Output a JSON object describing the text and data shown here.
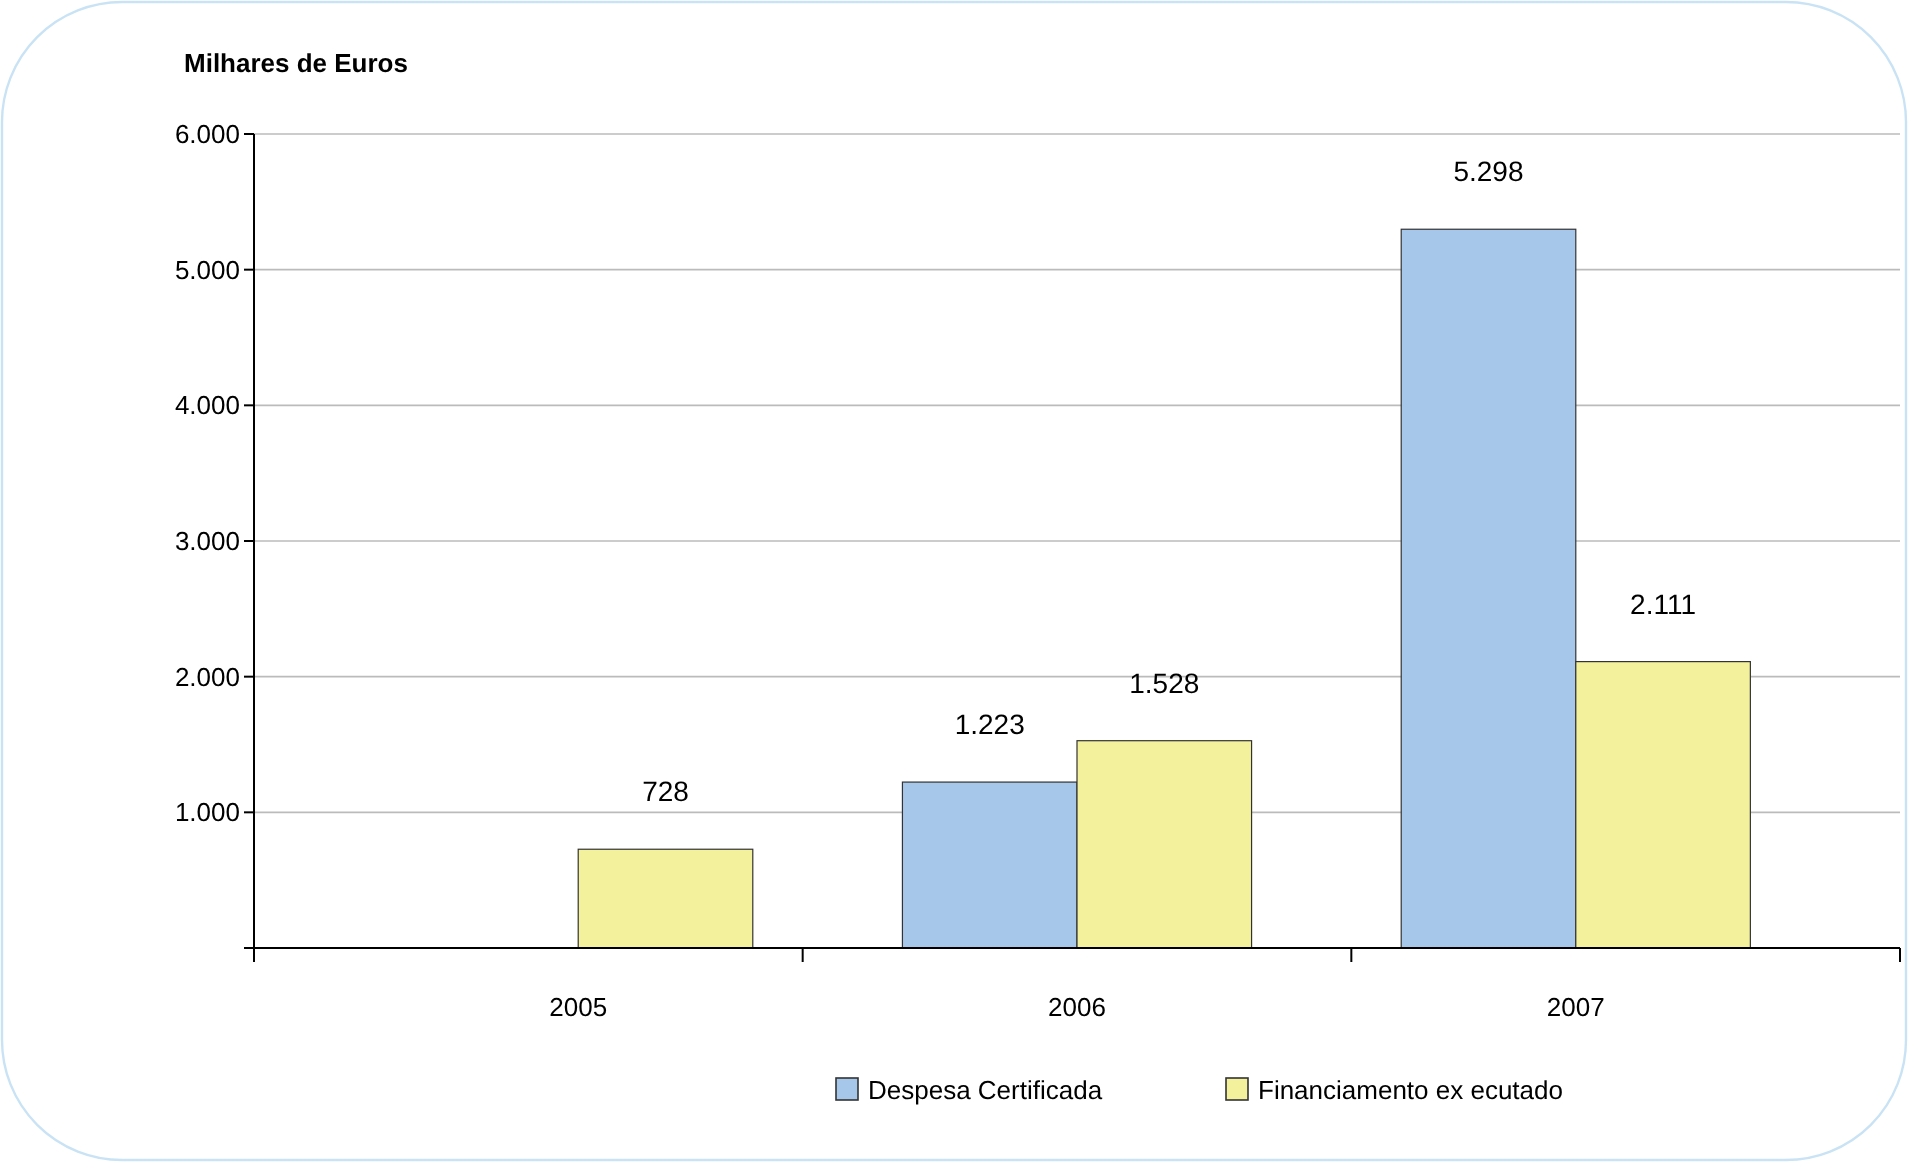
{
  "chart_data": {
    "type": "bar",
    "ylabel": "Milhares de Euros",
    "categories": [
      "2005",
      "2006",
      "2007"
    ],
    "series": [
      {
        "name": "Despesa Certificada",
        "color": "#a6c6ea",
        "values": [
          null,
          1223,
          5298
        ],
        "value_labels": [
          null,
          "1.223",
          "5.298"
        ]
      },
      {
        "name": "Financiamento ex ecutado",
        "color": "#f4f19c",
        "values": [
          728,
          1528,
          2111
        ],
        "value_labels": [
          "728",
          "1.528",
          "2.111"
        ]
      }
    ],
    "ylim": [
      0,
      6000
    ],
    "yticks": [
      {
        "value": 0,
        "label": null
      },
      {
        "value": 1000,
        "label": "1.000"
      },
      {
        "value": 2000,
        "label": "2.000"
      },
      {
        "value": 3000,
        "label": "3.000"
      },
      {
        "value": 4000,
        "label": "4.000"
      },
      {
        "value": 5000,
        "label": "5.000"
      },
      {
        "value": 6000,
        "label": "6.000"
      }
    ],
    "grid": "y",
    "legend": "bottom"
  }
}
